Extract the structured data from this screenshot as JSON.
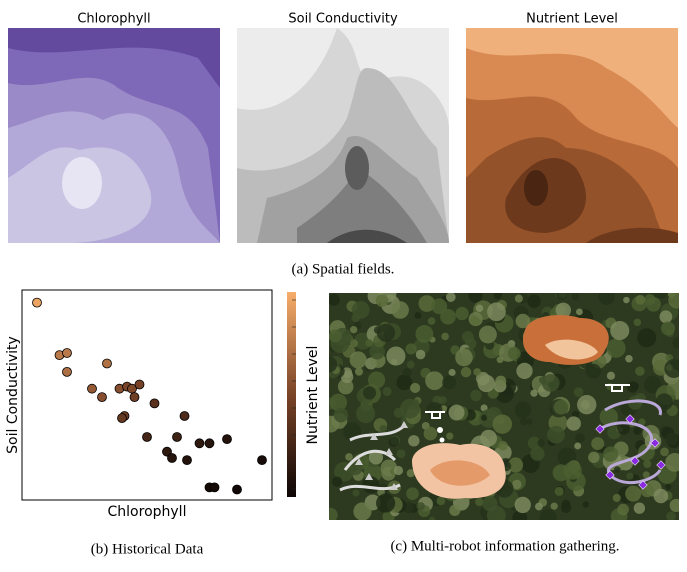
{
  "figure": {
    "panel_a": {
      "fields": [
        "Chlorophyll",
        "Soil Conductivity",
        "Nutrient Level"
      ],
      "caption": "(a) Spatial fields."
    },
    "panel_b": {
      "caption": "(b) Historical Data"
    },
    "panel_c": {
      "caption": "(c) Multi-robot information gathering."
    }
  },
  "chart_data": {
    "type": "scatter",
    "x_label": "Chlorophyll",
    "y_label": "Soil Conductivity",
    "colorbar_label": "Nutrient Level",
    "x": [
      0.06,
      0.15,
      0.18,
      0.18,
      0.34,
      0.28,
      0.32,
      0.39,
      0.42,
      0.44,
      0.47,
      0.45,
      0.41,
      0.4,
      0.53,
      0.65,
      0.5,
      0.62,
      0.58,
      0.6,
      0.66,
      0.71,
      0.75,
      0.82,
      0.96,
      0.75,
      0.77,
      0.86
    ],
    "y": [
      0.94,
      0.69,
      0.7,
      0.61,
      0.65,
      0.53,
      0.49,
      0.53,
      0.54,
      0.53,
      0.55,
      0.49,
      0.4,
      0.39,
      0.46,
      0.4,
      0.3,
      0.3,
      0.23,
      0.2,
      0.19,
      0.27,
      0.27,
      0.29,
      0.19,
      0.06,
      0.06,
      0.05
    ],
    "color_values": [
      0.95,
      0.75,
      0.75,
      0.7,
      0.72,
      0.6,
      0.55,
      0.55,
      0.5,
      0.52,
      0.48,
      0.45,
      0.42,
      0.4,
      0.35,
      0.3,
      0.25,
      0.22,
      0.15,
      0.12,
      0.1,
      0.15,
      0.12,
      0.1,
      0.05,
      0.03,
      0.03,
      0.02
    ],
    "xlim": [
      0,
      1
    ],
    "ylim": [
      0,
      1
    ],
    "clim": [
      0,
      1
    ],
    "colormap": [
      "#0d0604",
      "#7a4428",
      "#f7ad6a"
    ]
  }
}
